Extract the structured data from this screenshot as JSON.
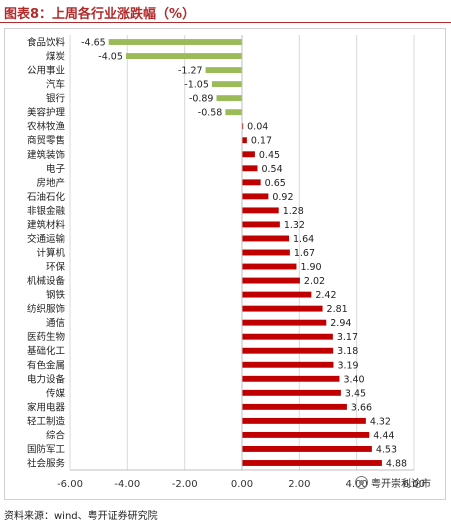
{
  "header": {
    "title": "图表8：上周各行业涨跌幅（%）"
  },
  "footer": {
    "source": "资料来源：wind、粤开证券研究院"
  },
  "watermark": {
    "text": "粤开崇利论市"
  },
  "colors": {
    "negative": "#9bbb59",
    "positive": "#c00000",
    "grid": "#d9d9d9",
    "title": "#b22a2a"
  },
  "chart_data": {
    "type": "bar",
    "orientation": "horizontal",
    "title": "",
    "xlabel": "",
    "ylabel": "",
    "xlim": [
      -6,
      6
    ],
    "xticks": [
      "-6.00",
      "-4.00",
      "-2.00",
      "0.00",
      "2.00",
      "4.00",
      "6.00"
    ],
    "grid": true,
    "legend": "none",
    "categories": [
      "食品饮料",
      "煤炭",
      "公用事业",
      "汽车",
      "银行",
      "美容护理",
      "农林牧渔",
      "商贸零售",
      "建筑装饰",
      "电子",
      "房地产",
      "石油石化",
      "非银金融",
      "建筑材料",
      "交通运输",
      "计算机",
      "环保",
      "机械设备",
      "钢铁",
      "纺织服饰",
      "通信",
      "医药生物",
      "基础化工",
      "有色金属",
      "电力设备",
      "传媒",
      "家用电器",
      "轻工制造",
      "综合",
      "国防军工",
      "社会服务"
    ],
    "values": [
      -4.65,
      -4.05,
      -1.27,
      -1.05,
      -0.89,
      -0.58,
      0.04,
      0.17,
      0.45,
      0.54,
      0.65,
      0.92,
      1.28,
      1.32,
      1.64,
      1.67,
      1.9,
      2.02,
      2.42,
      2.81,
      2.94,
      3.17,
      3.18,
      3.19,
      3.4,
      3.45,
      3.66,
      4.32,
      4.44,
      4.53,
      4.88
    ],
    "labels": [
      "-4.65",
      "-4.05",
      "-1.27",
      "-1.05",
      "-0.89",
      "-0.58",
      "0.04",
      "0.17",
      "0.45",
      "0.54",
      "0.65",
      "0.92",
      "1.28",
      "1.32",
      "1.64",
      "1.67",
      "1.90",
      "2.02",
      "2.42",
      "2.81",
      "2.94",
      "3.17",
      "3.18",
      "3.19",
      "3.40",
      "3.45",
      "3.66",
      "4.32",
      "4.44",
      "4.53",
      "4.88"
    ]
  }
}
